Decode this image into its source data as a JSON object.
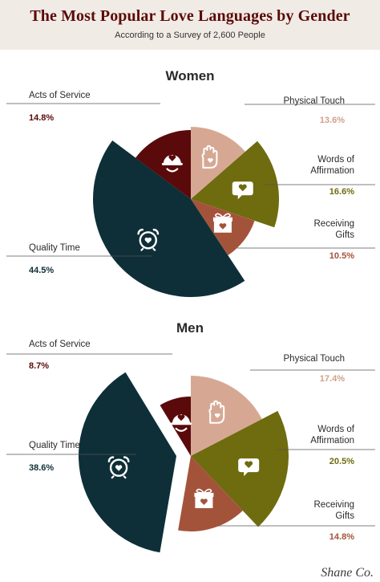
{
  "header": {
    "title": "The Most Popular Love Languages by Gender",
    "subtitle": "According to a Survey of 2,600 People"
  },
  "chart_data": [
    {
      "type": "pie",
      "title": "Women",
      "slices": [
        {
          "label": "Physical Touch",
          "value": 13.6,
          "pct_label": "13.6%",
          "color": "#d6a893",
          "icon": "hand-heart-icon"
        },
        {
          "label": "Words of Affirmation",
          "value": 16.6,
          "pct_label": "16.6%",
          "color": "#6f6b0f",
          "icon": "speech-heart-icon"
        },
        {
          "label": "Receiving Gifts",
          "value": 10.5,
          "pct_label": "10.5%",
          "color": "#a4533b",
          "icon": "gift-icon"
        },
        {
          "label": "Quality Time",
          "value": 44.5,
          "pct_label": "44.5%",
          "color": "#0e2f38",
          "icon": "alarm-clock-icon"
        },
        {
          "label": "Acts of Service",
          "value": 14.8,
          "pct_label": "14.8%",
          "color": "#5a0a0a",
          "icon": "helping-hand-icon"
        }
      ]
    },
    {
      "type": "pie",
      "title": "Men",
      "slices": [
        {
          "label": "Physical Touch",
          "value": 17.4,
          "pct_label": "17.4%",
          "color": "#d6a893",
          "icon": "hand-heart-icon"
        },
        {
          "label": "Words of Affirmation",
          "value": 20.5,
          "pct_label": "20.5%",
          "color": "#6f6b0f",
          "icon": "speech-heart-icon"
        },
        {
          "label": "Receiving Gifts",
          "value": 14.8,
          "pct_label": "14.8%",
          "color": "#a4533b",
          "icon": "gift-icon"
        },
        {
          "label": "Quality Time",
          "value": 38.6,
          "pct_label": "38.6%",
          "color": "#0e2f38",
          "icon": "alarm-clock-icon"
        },
        {
          "label": "Acts of Service",
          "value": 8.7,
          "pct_label": "8.7%",
          "color": "#5a0a0a",
          "icon": "helping-hand-icon"
        }
      ]
    }
  ],
  "label_text": {
    "physical_touch": [
      "Physical Touch"
    ],
    "words_of_affirmation": [
      "Words of",
      "Affirmation"
    ],
    "receiving_gifts": [
      "Receiving",
      "Gifts"
    ],
    "quality_time": [
      "Quality Time"
    ],
    "acts_of_service": [
      "Acts of Service"
    ]
  },
  "colors": {
    "physical_touch_pct": "#d2a089",
    "words_pct": "#6f6b0f",
    "gifts_pct": "#a4533b",
    "quality_pct": "#0e2f38",
    "acts_pct": "#5a0a0a",
    "header_bg": "#f1ebe5",
    "title": "#5b0a0a"
  },
  "footer": {
    "brand": "Shane Co."
  }
}
